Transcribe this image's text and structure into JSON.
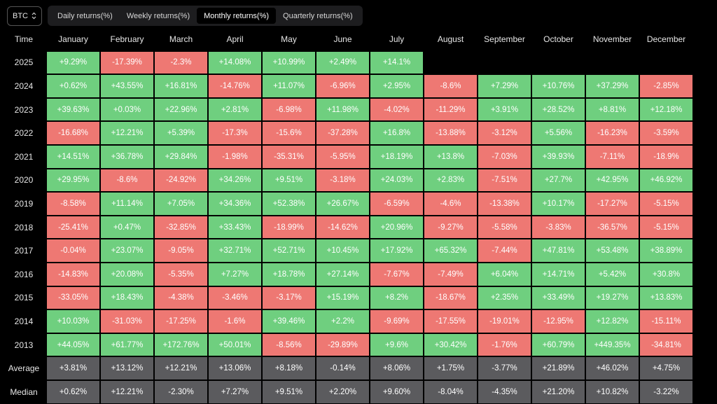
{
  "asset": {
    "label": "BTC",
    "icon": "chevron-up-down-icon"
  },
  "tabs": [
    {
      "label": "Daily returns(%)",
      "active": false
    },
    {
      "label": "Weekly returns(%)",
      "active": false
    },
    {
      "label": "Monthly returns(%)",
      "active": true
    },
    {
      "label": "Quarterly returns(%)",
      "active": false
    }
  ],
  "colors": {
    "positive": "#6fcf7f",
    "negative": "#ee7873",
    "stat": "#5b5b5e",
    "background": "#000000"
  },
  "table": {
    "corner": "Time",
    "months": [
      "January",
      "February",
      "March",
      "April",
      "May",
      "June",
      "July",
      "August",
      "September",
      "October",
      "November",
      "December"
    ],
    "rows": [
      {
        "label": "2025",
        "type": "year",
        "values": [
          "+9.29%",
          "-17.39%",
          "-2.3%",
          "+14.08%",
          "+10.99%",
          "+2.49%",
          "+14.1%",
          "",
          "",
          "",
          "",
          ""
        ]
      },
      {
        "label": "2024",
        "type": "year",
        "values": [
          "+0.62%",
          "+43.55%",
          "+16.81%",
          "-14.76%",
          "+11.07%",
          "-6.96%",
          "+2.95%",
          "-8.6%",
          "+7.29%",
          "+10.76%",
          "+37.29%",
          "-2.85%"
        ]
      },
      {
        "label": "2023",
        "type": "year",
        "values": [
          "+39.63%",
          "+0.03%",
          "+22.96%",
          "+2.81%",
          "-6.98%",
          "+11.98%",
          "-4.02%",
          "-11.29%",
          "+3.91%",
          "+28.52%",
          "+8.81%",
          "+12.18%"
        ]
      },
      {
        "label": "2022",
        "type": "year",
        "values": [
          "-16.68%",
          "+12.21%",
          "+5.39%",
          "-17.3%",
          "-15.6%",
          "-37.28%",
          "+16.8%",
          "-13.88%",
          "-3.12%",
          "+5.56%",
          "-16.23%",
          "-3.59%"
        ]
      },
      {
        "label": "2021",
        "type": "year",
        "values": [
          "+14.51%",
          "+36.78%",
          "+29.84%",
          "-1.98%",
          "-35.31%",
          "-5.95%",
          "+18.19%",
          "+13.8%",
          "-7.03%",
          "+39.93%",
          "-7.11%",
          "-18.9%"
        ]
      },
      {
        "label": "2020",
        "type": "year",
        "values": [
          "+29.95%",
          "-8.6%",
          "-24.92%",
          "+34.26%",
          "+9.51%",
          "-3.18%",
          "+24.03%",
          "+2.83%",
          "-7.51%",
          "+27.7%",
          "+42.95%",
          "+46.92%"
        ]
      },
      {
        "label": "2019",
        "type": "year",
        "values": [
          "-8.58%",
          "+11.14%",
          "+7.05%",
          "+34.36%",
          "+52.38%",
          "+26.67%",
          "-6.59%",
          "-4.6%",
          "-13.38%",
          "+10.17%",
          "-17.27%",
          "-5.15%"
        ]
      },
      {
        "label": "2018",
        "type": "year",
        "values": [
          "-25.41%",
          "+0.47%",
          "-32.85%",
          "+33.43%",
          "-18.99%",
          "-14.62%",
          "+20.96%",
          "-9.27%",
          "-5.58%",
          "-3.83%",
          "-36.57%",
          "-5.15%"
        ]
      },
      {
        "label": "2017",
        "type": "year",
        "values": [
          "-0.04%",
          "+23.07%",
          "-9.05%",
          "+32.71%",
          "+52.71%",
          "+10.45%",
          "+17.92%",
          "+65.32%",
          "-7.44%",
          "+47.81%",
          "+53.48%",
          "+38.89%"
        ]
      },
      {
        "label": "2016",
        "type": "year",
        "values": [
          "-14.83%",
          "+20.08%",
          "-5.35%",
          "+7.27%",
          "+18.78%",
          "+27.14%",
          "-7.67%",
          "-7.49%",
          "+6.04%",
          "+14.71%",
          "+5.42%",
          "+30.8%"
        ]
      },
      {
        "label": "2015",
        "type": "year",
        "values": [
          "-33.05%",
          "+18.43%",
          "-4.38%",
          "-3.46%",
          "-3.17%",
          "+15.19%",
          "+8.2%",
          "-18.67%",
          "+2.35%",
          "+33.49%",
          "+19.27%",
          "+13.83%"
        ]
      },
      {
        "label": "2014",
        "type": "year",
        "values": [
          "+10.03%",
          "-31.03%",
          "-17.25%",
          "-1.6%",
          "+39.46%",
          "+2.2%",
          "-9.69%",
          "-17.55%",
          "-19.01%",
          "-12.95%",
          "+12.82%",
          "-15.11%"
        ]
      },
      {
        "label": "2013",
        "type": "year",
        "values": [
          "+44.05%",
          "+61.77%",
          "+172.76%",
          "+50.01%",
          "-8.56%",
          "-29.89%",
          "+9.6%",
          "+30.42%",
          "-1.76%",
          "+60.79%",
          "+449.35%",
          "-34.81%"
        ]
      },
      {
        "label": "Average",
        "type": "stat",
        "values": [
          "+3.81%",
          "+13.12%",
          "+12.21%",
          "+13.06%",
          "+8.18%",
          "-0.14%",
          "+8.06%",
          "+1.75%",
          "-3.77%",
          "+21.89%",
          "+46.02%",
          "+4.75%"
        ]
      },
      {
        "label": "Median",
        "type": "stat",
        "values": [
          "+0.62%",
          "+12.21%",
          "-2.30%",
          "+7.27%",
          "+9.51%",
          "+2.20%",
          "+9.60%",
          "-8.04%",
          "-4.35%",
          "+21.20%",
          "+10.82%",
          "-3.22%"
        ]
      }
    ]
  }
}
